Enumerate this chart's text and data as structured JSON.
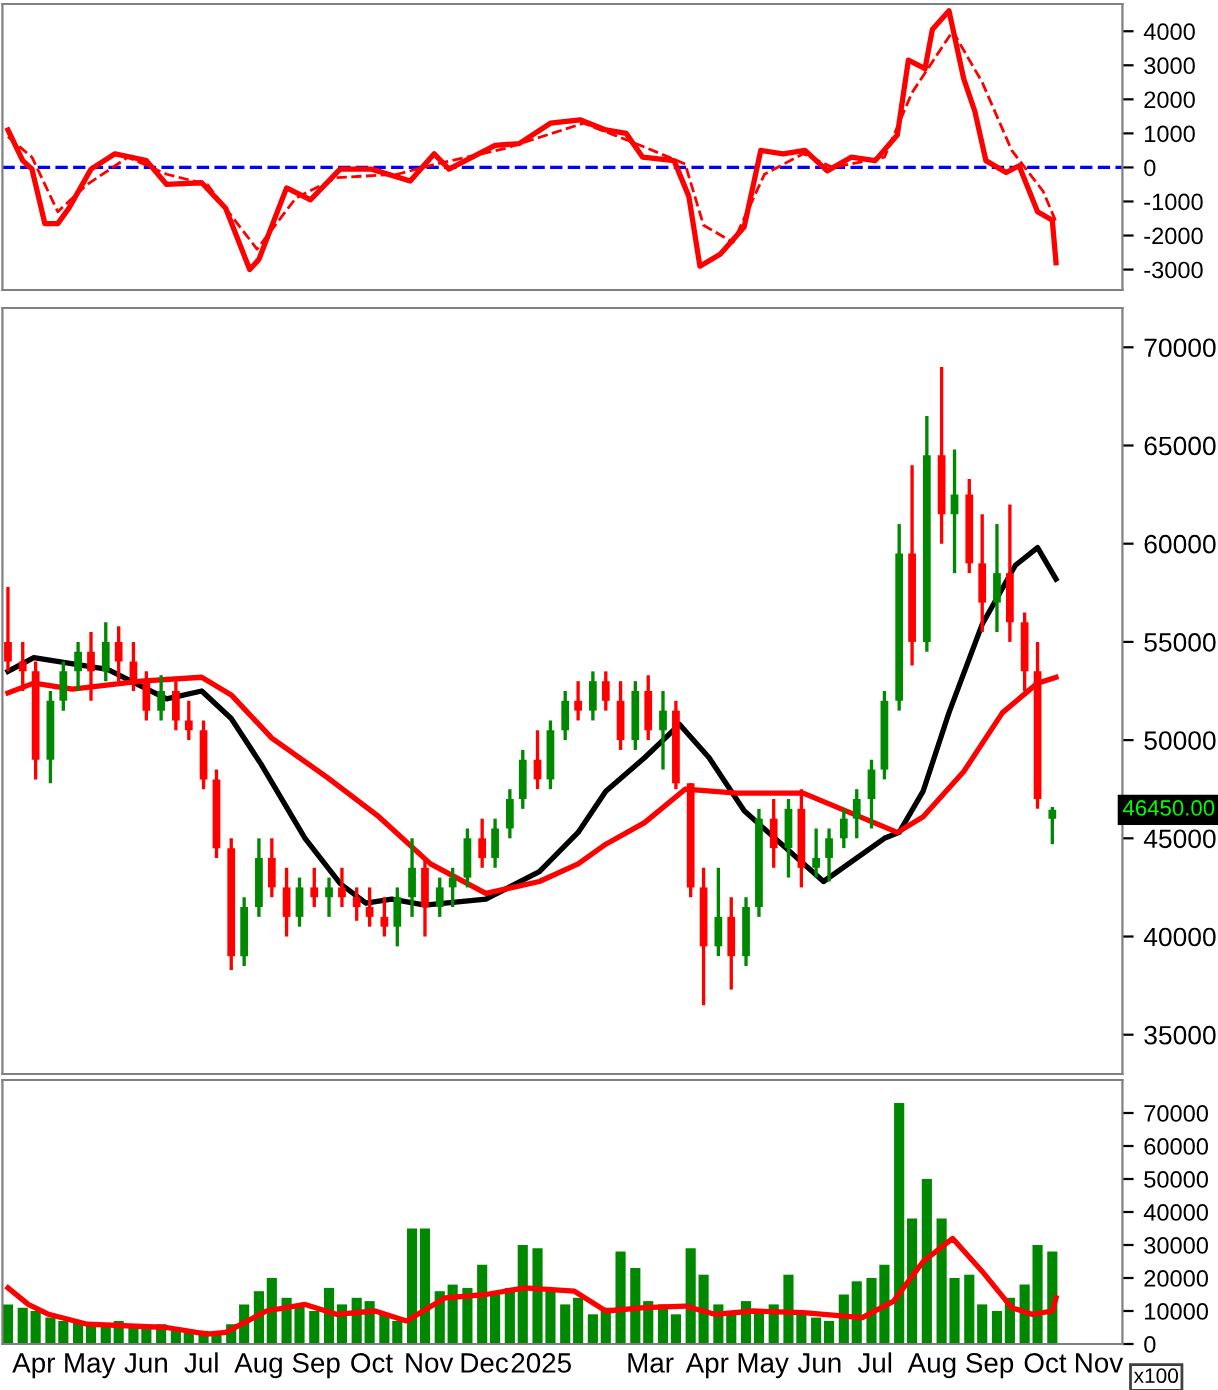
{
  "chart_data": [
    {
      "type": "line",
      "xlim": [
        "2024-03-29",
        "2025-11-26"
      ],
      "ylim": [
        -3600,
        4800
      ],
      "yticks": [
        -3000,
        -2000,
        -1000,
        0,
        1000,
        2000,
        3000,
        4000
      ],
      "tick_labels": "y",
      "ref_lines": [
        {
          "axis": "y",
          "value": 0,
          "color": "#0000ff",
          "line_style": "dashed"
        }
      ],
      "series": [
        {
          "color": "#ff0000",
          "line_style": "solid",
          "x": [
            "2024-04-01",
            "2024-04-09",
            "2024-04-14",
            "2024-04-21",
            "2024-04-28",
            "2024-05-04",
            "2024-05-16",
            "2024-05-29",
            "2024-06-07",
            "2024-06-15",
            "2024-06-26",
            "2024-07-15",
            "2024-07-28",
            "2024-08-10",
            "2024-08-15",
            "2024-08-30",
            "2024-09-12",
            "2024-09-28",
            "2024-10-15",
            "2024-11-05",
            "2024-11-18",
            "2024-11-26",
            "2024-12-21",
            "2025-01-03",
            "2025-01-20",
            "2025-02-05",
            "2025-02-19",
            "2025-03-02",
            "2025-03-11",
            "2025-03-28",
            "2025-04-05",
            "2025-04-11",
            "2025-04-22",
            "2025-05-05",
            "2025-05-14",
            "2025-05-26",
            "2025-06-07",
            "2025-06-19",
            "2025-07-02",
            "2025-07-15",
            "2025-07-27",
            "2025-08-02",
            "2025-08-11",
            "2025-08-15",
            "2025-08-24",
            "2025-09-01",
            "2025-09-07",
            "2025-09-13",
            "2025-09-24",
            "2025-10-01",
            "2025-10-11",
            "2025-10-19",
            "2025-10-21"
          ],
          "values": [
            1100,
            200,
            -50,
            -1650,
            -1650,
            -1200,
            -50,
            400,
            300,
            200,
            -500,
            -450,
            -1200,
            -3000,
            -2700,
            -600,
            -950,
            -50,
            -50,
            -400,
            400,
            -50,
            650,
            700,
            1300,
            1400,
            1100,
            1000,
            300,
            200,
            -850,
            -2900,
            -2550,
            -1750,
            500,
            400,
            500,
            -100,
            300,
            200,
            950,
            3150,
            2900,
            4050,
            4600,
            2600,
            1650,
            200,
            -150,
            50,
            -1300,
            -1550,
            -2800
          ]
        },
        {
          "color": "#ff0000",
          "line_style": "dashed",
          "x": [
            "2024-04-01",
            "2024-04-14",
            "2024-04-28",
            "2024-05-14",
            "2024-06-05",
            "2024-06-26",
            "2024-07-18",
            "2024-08-14",
            "2024-09-04",
            "2024-09-26",
            "2024-10-29",
            "2024-11-19",
            "2024-12-26",
            "2025-02-07",
            "2025-03-12",
            "2025-04-03",
            "2025-04-13",
            "2025-04-29",
            "2025-05-16",
            "2025-06-06",
            "2025-06-22",
            "2025-07-20",
            "2025-08-04",
            "2025-08-26",
            "2025-09-11",
            "2025-09-27",
            "2025-10-14",
            "2025-10-21"
          ],
          "values": [
            900,
            300,
            -1300,
            -500,
            300,
            -200,
            -500,
            -2400,
            -900,
            -300,
            -200,
            100,
            550,
            1300,
            600,
            100,
            -1700,
            -2200,
            -200,
            400,
            0,
            300,
            2200,
            4000,
            2500,
            500,
            -700,
            -1600
          ]
        }
      ]
    },
    {
      "type": "candlestick",
      "xlim": [
        "2024-03-29",
        "2025-11-26"
      ],
      "ylim": [
        33000,
        72000
      ],
      "yticks": [
        35000,
        40000,
        45000,
        50000,
        55000,
        60000,
        65000,
        70000
      ],
      "tick_labels": "y",
      "x": [
        "2024-04-01",
        "2024-04-09",
        "2024-04-16",
        "2024-04-24",
        "2024-05-01",
        "2024-05-09",
        "2024-05-16",
        "2024-05-24",
        "2024-05-31",
        "2024-06-08",
        "2024-06-15",
        "2024-06-23",
        "2024-07-01",
        "2024-07-08",
        "2024-07-16",
        "2024-07-23",
        "2024-07-31",
        "2024-08-07",
        "2024-08-15",
        "2024-08-22",
        "2024-08-30",
        "2024-09-06",
        "2024-09-14",
        "2024-09-22",
        "2024-09-29",
        "2024-10-07",
        "2024-10-14",
        "2024-10-22",
        "2024-10-29",
        "2024-11-06",
        "2024-11-13",
        "2024-11-21",
        "2024-11-28",
        "2024-12-06",
        "2024-12-14",
        "2024-12-21",
        "2024-12-29",
        "2025-01-05",
        "2025-01-13",
        "2025-01-20",
        "2025-01-28",
        "2025-02-04",
        "2025-02-12",
        "2025-02-19",
        "2025-02-27",
        "2025-03-07",
        "2025-03-14",
        "2025-03-22",
        "2025-03-29",
        "2025-04-06",
        "2025-04-13",
        "2025-04-21",
        "2025-04-28",
        "2025-05-06",
        "2025-05-13",
        "2025-05-21",
        "2025-05-29",
        "2025-06-05",
        "2025-06-13",
        "2025-06-20",
        "2025-06-28",
        "2025-07-05",
        "2025-07-13",
        "2025-07-20",
        "2025-07-28",
        "2025-08-04",
        "2025-08-12",
        "2025-08-20",
        "2025-08-27",
        "2025-09-04",
        "2025-09-11",
        "2025-09-19",
        "2025-09-26",
        "2025-10-04",
        "2025-10-11",
        "2025-10-19"
      ],
      "ohlc": [
        [
          55000,
          57800,
          53500,
          54000
        ],
        [
          54000,
          55000,
          52500,
          53500
        ],
        [
          53500,
          54000,
          48000,
          49000
        ],
        [
          49000,
          52500,
          47800,
          52000
        ],
        [
          52000,
          54000,
          51500,
          53500
        ],
        [
          53500,
          55000,
          52500,
          54500
        ],
        [
          54500,
          55500,
          52000,
          53500
        ],
        [
          53500,
          56000,
          53000,
          55000
        ],
        [
          55000,
          55800,
          53000,
          54000
        ],
        [
          54000,
          55000,
          52500,
          53000
        ],
        [
          53000,
          53500,
          51000,
          51500
        ],
        [
          51500,
          53300,
          51000,
          52500
        ],
        [
          52500,
          53000,
          50500,
          51000
        ],
        [
          51000,
          52000,
          50000,
          50500
        ],
        [
          50500,
          51000,
          47500,
          48000
        ],
        [
          48000,
          48500,
          44000,
          44500
        ],
        [
          44500,
          45000,
          38300,
          39000
        ],
        [
          39000,
          42000,
          38500,
          41500
        ],
        [
          41500,
          45000,
          41000,
          44000
        ],
        [
          44000,
          45000,
          42000,
          42500
        ],
        [
          42500,
          43500,
          40000,
          41000
        ],
        [
          41000,
          43000,
          40500,
          42500
        ],
        [
          42500,
          43500,
          41500,
          42000
        ],
        [
          42000,
          43000,
          41000,
          42500
        ],
        [
          42500,
          43500,
          41500,
          42000
        ],
        [
          42000,
          42500,
          40800,
          41500
        ],
        [
          41500,
          42500,
          40500,
          41000
        ],
        [
          41000,
          42000,
          40000,
          40500
        ],
        [
          40500,
          42500,
          39500,
          42000
        ],
        [
          42000,
          45000,
          41000,
          43500
        ],
        [
          43500,
          44000,
          40000,
          41500
        ],
        [
          41500,
          43000,
          41000,
          42500
        ],
        [
          42500,
          43500,
          41500,
          43000
        ],
        [
          43000,
          45500,
          42500,
          45000
        ],
        [
          45000,
          46000,
          43500,
          44000
        ],
        [
          44000,
          46000,
          43500,
          45500
        ],
        [
          45500,
          47500,
          45000,
          47000
        ],
        [
          47000,
          49500,
          46500,
          49000
        ],
        [
          49000,
          50500,
          47500,
          48000
        ],
        [
          48000,
          51000,
          47500,
          50500
        ],
        [
          50500,
          52500,
          50000,
          52000
        ],
        [
          52000,
          53000,
          51000,
          51500
        ],
        [
          51500,
          53500,
          51000,
          53000
        ],
        [
          53000,
          53500,
          51500,
          52000
        ],
        [
          52000,
          53000,
          49500,
          50000
        ],
        [
          50000,
          53000,
          49500,
          52500
        ],
        [
          52500,
          53300,
          50000,
          50500
        ],
        [
          50500,
          52500,
          48500,
          51500
        ],
        [
          51500,
          52000,
          47500,
          47800
        ],
        [
          47800,
          47800,
          42000,
          42500
        ],
        [
          42500,
          43500,
          36500,
          39500
        ],
        [
          39500,
          43500,
          39000,
          41000
        ],
        [
          41000,
          42000,
          37300,
          39000
        ],
        [
          39000,
          42000,
          38500,
          41500
        ],
        [
          41500,
          46500,
          41000,
          46000
        ],
        [
          46000,
          47000,
          43500,
          44500
        ],
        [
          44500,
          47000,
          43000,
          46500
        ],
        [
          46500,
          47500,
          42500,
          43500
        ],
        [
          43500,
          45500,
          43000,
          44000
        ],
        [
          44000,
          45500,
          42800,
          45000
        ],
        [
          45000,
          46500,
          44500,
          46000
        ],
        [
          46000,
          47500,
          45000,
          47000
        ],
        [
          47000,
          49000,
          45500,
          48500
        ],
        [
          48500,
          52500,
          48000,
          52000
        ],
        [
          52000,
          61000,
          51500,
          59500
        ],
        [
          59500,
          64000,
          53800,
          55000
        ],
        [
          55000,
          66500,
          54500,
          64500
        ],
        [
          64500,
          69000,
          60000,
          61500
        ],
        [
          61500,
          64800,
          58500,
          62500
        ],
        [
          62500,
          63300,
          58500,
          59000
        ],
        [
          59000,
          61500,
          55500,
          57000
        ],
        [
          57000,
          61000,
          55500,
          58500
        ],
        [
          58500,
          62000,
          55000,
          56000
        ],
        [
          56000,
          56500,
          52500,
          53500
        ],
        [
          53500,
          55000,
          46500,
          47000
        ],
        [
          46000,
          46600,
          44700,
          46450
        ]
      ],
      "colors": [
        "#ff0000",
        "#ff0000",
        "#ff0000",
        "#008800",
        "#008800",
        "#008800",
        "#ff0000",
        "#008800",
        "#ff0000",
        "#ff0000",
        "#ff0000",
        "#008800",
        "#ff0000",
        "#ff0000",
        "#ff0000",
        "#ff0000",
        "#ff0000",
        "#008800",
        "#008800",
        "#ff0000",
        "#ff0000",
        "#008800",
        "#ff0000",
        "#008800",
        "#ff0000",
        "#ff0000",
        "#ff0000",
        "#ff0000",
        "#008800",
        "#008800",
        "#ff0000",
        "#008800",
        "#008800",
        "#008800",
        "#ff0000",
        "#008800",
        "#008800",
        "#008800",
        "#ff0000",
        "#008800",
        "#008800",
        "#ff0000",
        "#008800",
        "#ff0000",
        "#ff0000",
        "#008800",
        "#ff0000",
        "#008800",
        "#ff0000",
        "#ff0000",
        "#ff0000",
        "#008800",
        "#ff0000",
        "#008800",
        "#008800",
        "#ff0000",
        "#008800",
        "#ff0000",
        "#008800",
        "#008800",
        "#008800",
        "#008800",
        "#008800",
        "#008800",
        "#008800",
        "#ff0000",
        "#008800",
        "#ff0000",
        "#008800",
        "#ff0000",
        "#ff0000",
        "#008800",
        "#ff0000",
        "#ff0000",
        "#ff0000",
        "#008800"
      ],
      "series": [
        {
          "type": "line",
          "color": "#000000",
          "x": [
            "2024-04-01",
            "2024-04-15",
            "2024-05-25",
            "2024-06-26",
            "2024-07-15",
            "2024-07-31",
            "2024-08-16",
            "2024-09-09",
            "2024-09-28",
            "2024-10-12",
            "2024-10-26",
            "2024-11-13",
            "2024-12-16",
            "2025-01-14",
            "2025-02-04",
            "2025-02-19",
            "2025-03-12",
            "2025-03-31",
            "2025-04-16",
            "2025-05-05",
            "2025-06-17",
            "2025-07-20",
            "2025-07-28",
            "2025-08-10",
            "2025-08-24",
            "2025-09-11",
            "2025-09-29",
            "2025-10-11",
            "2025-10-21"
          ],
          "values": [
            53500,
            54200,
            53600,
            52100,
            52500,
            51100,
            48800,
            45000,
            42700,
            41700,
            41900,
            41600,
            41900,
            43300,
            45300,
            47400,
            49100,
            50800,
            49100,
            46400,
            42800,
            45000,
            45300,
            47400,
            51400,
            55900,
            58900,
            59800,
            58200
          ]
        },
        {
          "type": "line",
          "color": "#ff0000",
          "x": [
            "2024-04-01",
            "2024-04-15",
            "2024-05-06",
            "2024-06-12",
            "2024-07-15",
            "2024-07-31",
            "2024-08-22",
            "2024-09-21",
            "2024-10-19",
            "2024-11-16",
            "2024-12-16",
            "2025-01-14",
            "2025-02-04",
            "2025-02-19",
            "2025-03-12",
            "2025-04-03",
            "2025-05-01",
            "2025-06-06",
            "2025-07-27",
            "2025-08-10",
            "2025-09-01",
            "2025-09-22",
            "2025-10-11",
            "2025-10-21"
          ],
          "values": [
            52400,
            52900,
            52600,
            53000,
            53200,
            52300,
            50100,
            48100,
            46100,
            43700,
            42200,
            42800,
            43700,
            44700,
            45800,
            47500,
            47300,
            47300,
            45300,
            46100,
            48400,
            51400,
            52900,
            53200
          ]
        }
      ],
      "annotations": [
        "46450.00"
      ]
    },
    {
      "type": "bar",
      "xlim": [
        "2024-03-29",
        "2025-11-26"
      ],
      "ylim": [
        0,
        80000
      ],
      "yticks": [
        0,
        10000,
        20000,
        30000,
        40000,
        50000,
        60000,
        70000
      ],
      "xticks": [
        {
          "value": "2024-04-15",
          "label": "Apr"
        },
        {
          "value": "2024-05-15",
          "label": "May"
        },
        {
          "value": "2024-06-15",
          "label": "Jun"
        },
        {
          "value": "2024-07-15",
          "label": "Jul"
        },
        {
          "value": "2024-08-15",
          "label": "Aug"
        },
        {
          "value": "2024-09-15",
          "label": "Sep"
        },
        {
          "value": "2024-10-15",
          "label": "Oct"
        },
        {
          "value": "2024-11-15",
          "label": "Nov"
        },
        {
          "value": "2024-12-15",
          "label": "Dec"
        },
        {
          "value": "2025-01-15",
          "label": "2025"
        },
        {
          "value": "2025-03-15",
          "label": "Mar"
        },
        {
          "value": "2025-04-15",
          "label": "Apr"
        },
        {
          "value": "2025-05-15",
          "label": "May"
        },
        {
          "value": "2025-06-15",
          "label": "Jun"
        },
        {
          "value": "2025-07-15",
          "label": "Jul"
        },
        {
          "value": "2025-08-15",
          "label": "Aug"
        },
        {
          "value": "2025-09-15",
          "label": "Sep"
        },
        {
          "value": "2025-10-15",
          "label": "Oct"
        },
        {
          "value": "2025-11-13",
          "label": "Nov"
        }
      ],
      "series": [
        {
          "type": "bar",
          "color": "#008800",
          "x": [
            "2024-04-01",
            "2024-04-09",
            "2024-04-16",
            "2024-04-24",
            "2024-05-01",
            "2024-05-09",
            "2024-05-16",
            "2024-05-24",
            "2024-05-31",
            "2024-06-08",
            "2024-06-15",
            "2024-06-23",
            "2024-07-01",
            "2024-07-08",
            "2024-07-16",
            "2024-07-23",
            "2024-07-31",
            "2024-08-07",
            "2024-08-15",
            "2024-08-22",
            "2024-08-30",
            "2024-09-06",
            "2024-09-14",
            "2024-09-22",
            "2024-09-29",
            "2024-10-07",
            "2024-10-14",
            "2024-10-22",
            "2024-10-29",
            "2024-11-06",
            "2024-11-13",
            "2024-11-21",
            "2024-11-28",
            "2024-12-06",
            "2024-12-14",
            "2024-12-21",
            "2024-12-29",
            "2025-01-05",
            "2025-01-13",
            "2025-01-20",
            "2025-01-28",
            "2025-02-04",
            "2025-02-12",
            "2025-02-19",
            "2025-02-27",
            "2025-03-07",
            "2025-03-14",
            "2025-03-22",
            "2025-03-29",
            "2025-04-06",
            "2025-04-13",
            "2025-04-21",
            "2025-04-28",
            "2025-05-06",
            "2025-05-13",
            "2025-05-21",
            "2025-05-29",
            "2025-06-05",
            "2025-06-13",
            "2025-06-20",
            "2025-06-28",
            "2025-07-05",
            "2025-07-13",
            "2025-07-20",
            "2025-07-28",
            "2025-08-04",
            "2025-08-12",
            "2025-08-20",
            "2025-08-27",
            "2025-09-04",
            "2025-09-11",
            "2025-09-19",
            "2025-09-26",
            "2025-10-04",
            "2025-10-11",
            "2025-10-19"
          ],
          "values": [
            12000,
            11000,
            10000,
            8000,
            7000,
            7000,
            6000,
            6000,
            7000,
            6000,
            5000,
            6000,
            5000,
            4000,
            4000,
            3000,
            6000,
            12000,
            16000,
            20000,
            14000,
            12000,
            10000,
            17000,
            12000,
            14000,
            13000,
            9000,
            7000,
            35000,
            35000,
            16000,
            18000,
            17000,
            24000,
            15000,
            17000,
            30000,
            29000,
            16000,
            12000,
            14000,
            9000,
            11000,
            28000,
            23000,
            13000,
            12000,
            9000,
            29000,
            21000,
            12000,
            10000,
            13000,
            10000,
            12000,
            21000,
            9000,
            8000,
            7000,
            15000,
            19000,
            20000,
            24000,
            73000,
            38000,
            50000,
            38000,
            20000,
            21000,
            12000,
            10000,
            14000,
            18000,
            30000,
            28000
          ]
        },
        {
          "type": "line",
          "color": "#ff0000",
          "x": [
            "2024-04-01",
            "2024-04-12",
            "2024-04-23",
            "2024-05-14",
            "2024-06-26",
            "2024-07-18",
            "2024-07-28",
            "2024-08-19",
            "2024-09-09",
            "2024-09-26",
            "2024-10-17",
            "2024-11-03",
            "2024-11-24",
            "2024-12-16",
            "2025-01-06",
            "2025-02-02",
            "2025-02-19",
            "2025-03-12",
            "2025-04-03",
            "2025-04-19",
            "2025-05-10",
            "2025-06-06",
            "2025-07-08",
            "2025-07-25",
            "2025-08-10",
            "2025-08-26",
            "2025-09-11",
            "2025-09-27",
            "2025-10-08",
            "2025-10-19",
            "2025-10-21"
          ],
          "values": [
            17000,
            12000,
            9000,
            6000,
            5000,
            3000,
            3500,
            10000,
            12000,
            9000,
            10000,
            7000,
            14000,
            15000,
            17000,
            16000,
            10000,
            11000,
            11500,
            9000,
            10000,
            9500,
            8000,
            13000,
            25000,
            32000,
            22000,
            11000,
            9000,
            10000,
            14000
          ]
        }
      ],
      "annotations": [
        "x100"
      ]
    }
  ]
}
